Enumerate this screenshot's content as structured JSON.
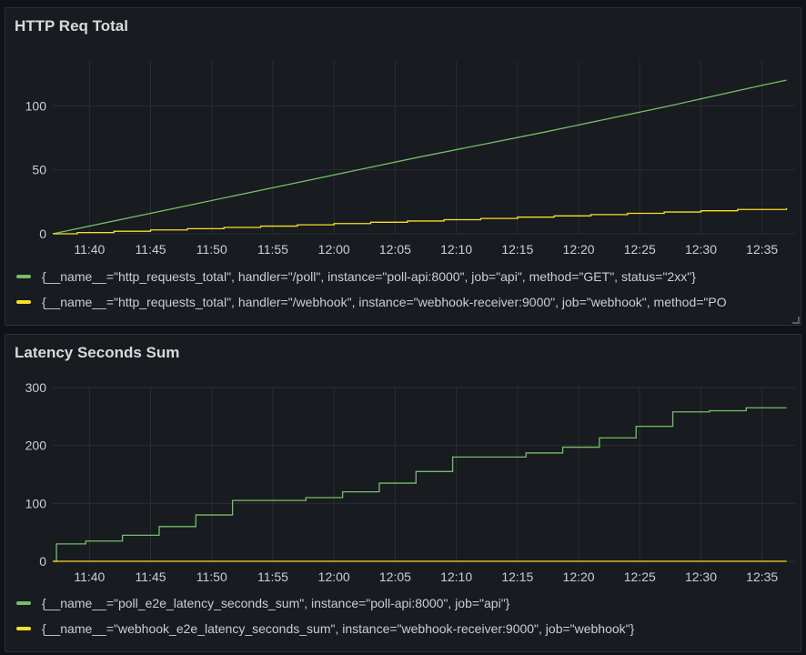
{
  "panels": [
    {
      "title": "HTTP Req Total",
      "legend": [
        {
          "color": "#73bf69",
          "label": "{__name__=\"http_requests_total\", handler=\"/poll\", instance=\"poll-api:8000\", job=\"api\", method=\"GET\", status=\"2xx\"}"
        },
        {
          "color": "#fade2a",
          "label": "{__name__=\"http_requests_total\", handler=\"/webhook\", instance=\"webhook-receiver:9000\", job=\"webhook\", method=\"PO"
        }
      ]
    },
    {
      "title": "Latency Seconds Sum",
      "legend": [
        {
          "color": "#73bf69",
          "label": "{__name__=\"poll_e2e_latency_seconds_sum\", instance=\"poll-api:8000\", job=\"api\"}"
        },
        {
          "color": "#fade2a",
          "label": "{__name__=\"webhook_e2e_latency_seconds_sum\", instance=\"webhook-receiver:9000\", job=\"webhook\"}"
        }
      ]
    }
  ],
  "chart_data": [
    {
      "type": "line",
      "title": "HTTP Req Total",
      "x_ticks": [
        "11:40",
        "11:45",
        "11:50",
        "11:55",
        "12:00",
        "12:05",
        "12:10",
        "12:15",
        "12:20",
        "12:25",
        "12:30",
        "12:35"
      ],
      "x_tick_minutes": [
        3,
        8,
        13,
        18,
        23,
        28,
        33,
        38,
        43,
        48,
        53,
        58
      ],
      "xlim_minutes": [
        0,
        60.7
      ],
      "x_start": "11:37",
      "ylim": [
        0,
        135
      ],
      "y_ticks": [
        0,
        50,
        100
      ],
      "grid": true,
      "legend_position": "bottom",
      "series": [
        {
          "color": "#73bf69",
          "step": false,
          "x_minutes": [
            0,
            10,
            20,
            30,
            40,
            50,
            58,
            60
          ],
          "values": [
            0,
            20,
            40,
            60,
            79,
            99,
            116,
            120
          ]
        },
        {
          "color": "#fade2a",
          "step": true,
          "x_minutes": [
            0,
            2,
            5,
            8,
            11,
            14,
            17,
            20,
            23,
            26,
            29,
            32,
            35,
            38,
            41,
            44,
            47,
            50,
            53,
            56,
            60
          ],
          "values": [
            0,
            1,
            2,
            3,
            4,
            5,
            6,
            7,
            8,
            9,
            10,
            11,
            12,
            13,
            14,
            15,
            16,
            17,
            18,
            19,
            20
          ]
        }
      ]
    },
    {
      "type": "line",
      "title": "Latency Seconds Sum",
      "x_ticks": [
        "11:40",
        "11:45",
        "11:50",
        "11:55",
        "12:00",
        "12:05",
        "12:10",
        "12:15",
        "12:20",
        "12:25",
        "12:30",
        "12:35"
      ],
      "x_tick_minutes": [
        3,
        8,
        13,
        18,
        23,
        28,
        33,
        38,
        43,
        48,
        53,
        58
      ],
      "xlim_minutes": [
        0,
        60.7
      ],
      "x_start": "11:37",
      "ylim": [
        0,
        300
      ],
      "y_ticks": [
        0,
        100,
        200,
        300
      ],
      "grid": true,
      "legend_position": "bottom",
      "series": [
        {
          "color": "#73bf69",
          "step": true,
          "x_minutes": [
            0,
            0.3,
            2.7,
            5.7,
            8.7,
            11.7,
            14.7,
            17.7,
            20.7,
            23.7,
            26.7,
            29.7,
            32.7,
            35.7,
            38.7,
            41.7,
            44.7,
            47.7,
            50.7,
            53.7,
            56.7,
            60
          ],
          "values": [
            0,
            30,
            35,
            45,
            60,
            80,
            105,
            105,
            110,
            120,
            135,
            155,
            180,
            180,
            187,
            197,
            213,
            233,
            258,
            260,
            265,
            265
          ]
        },
        {
          "color": "#fade2a",
          "step": false,
          "x_minutes": [
            0,
            60
          ],
          "values": [
            0,
            0
          ]
        }
      ]
    }
  ]
}
